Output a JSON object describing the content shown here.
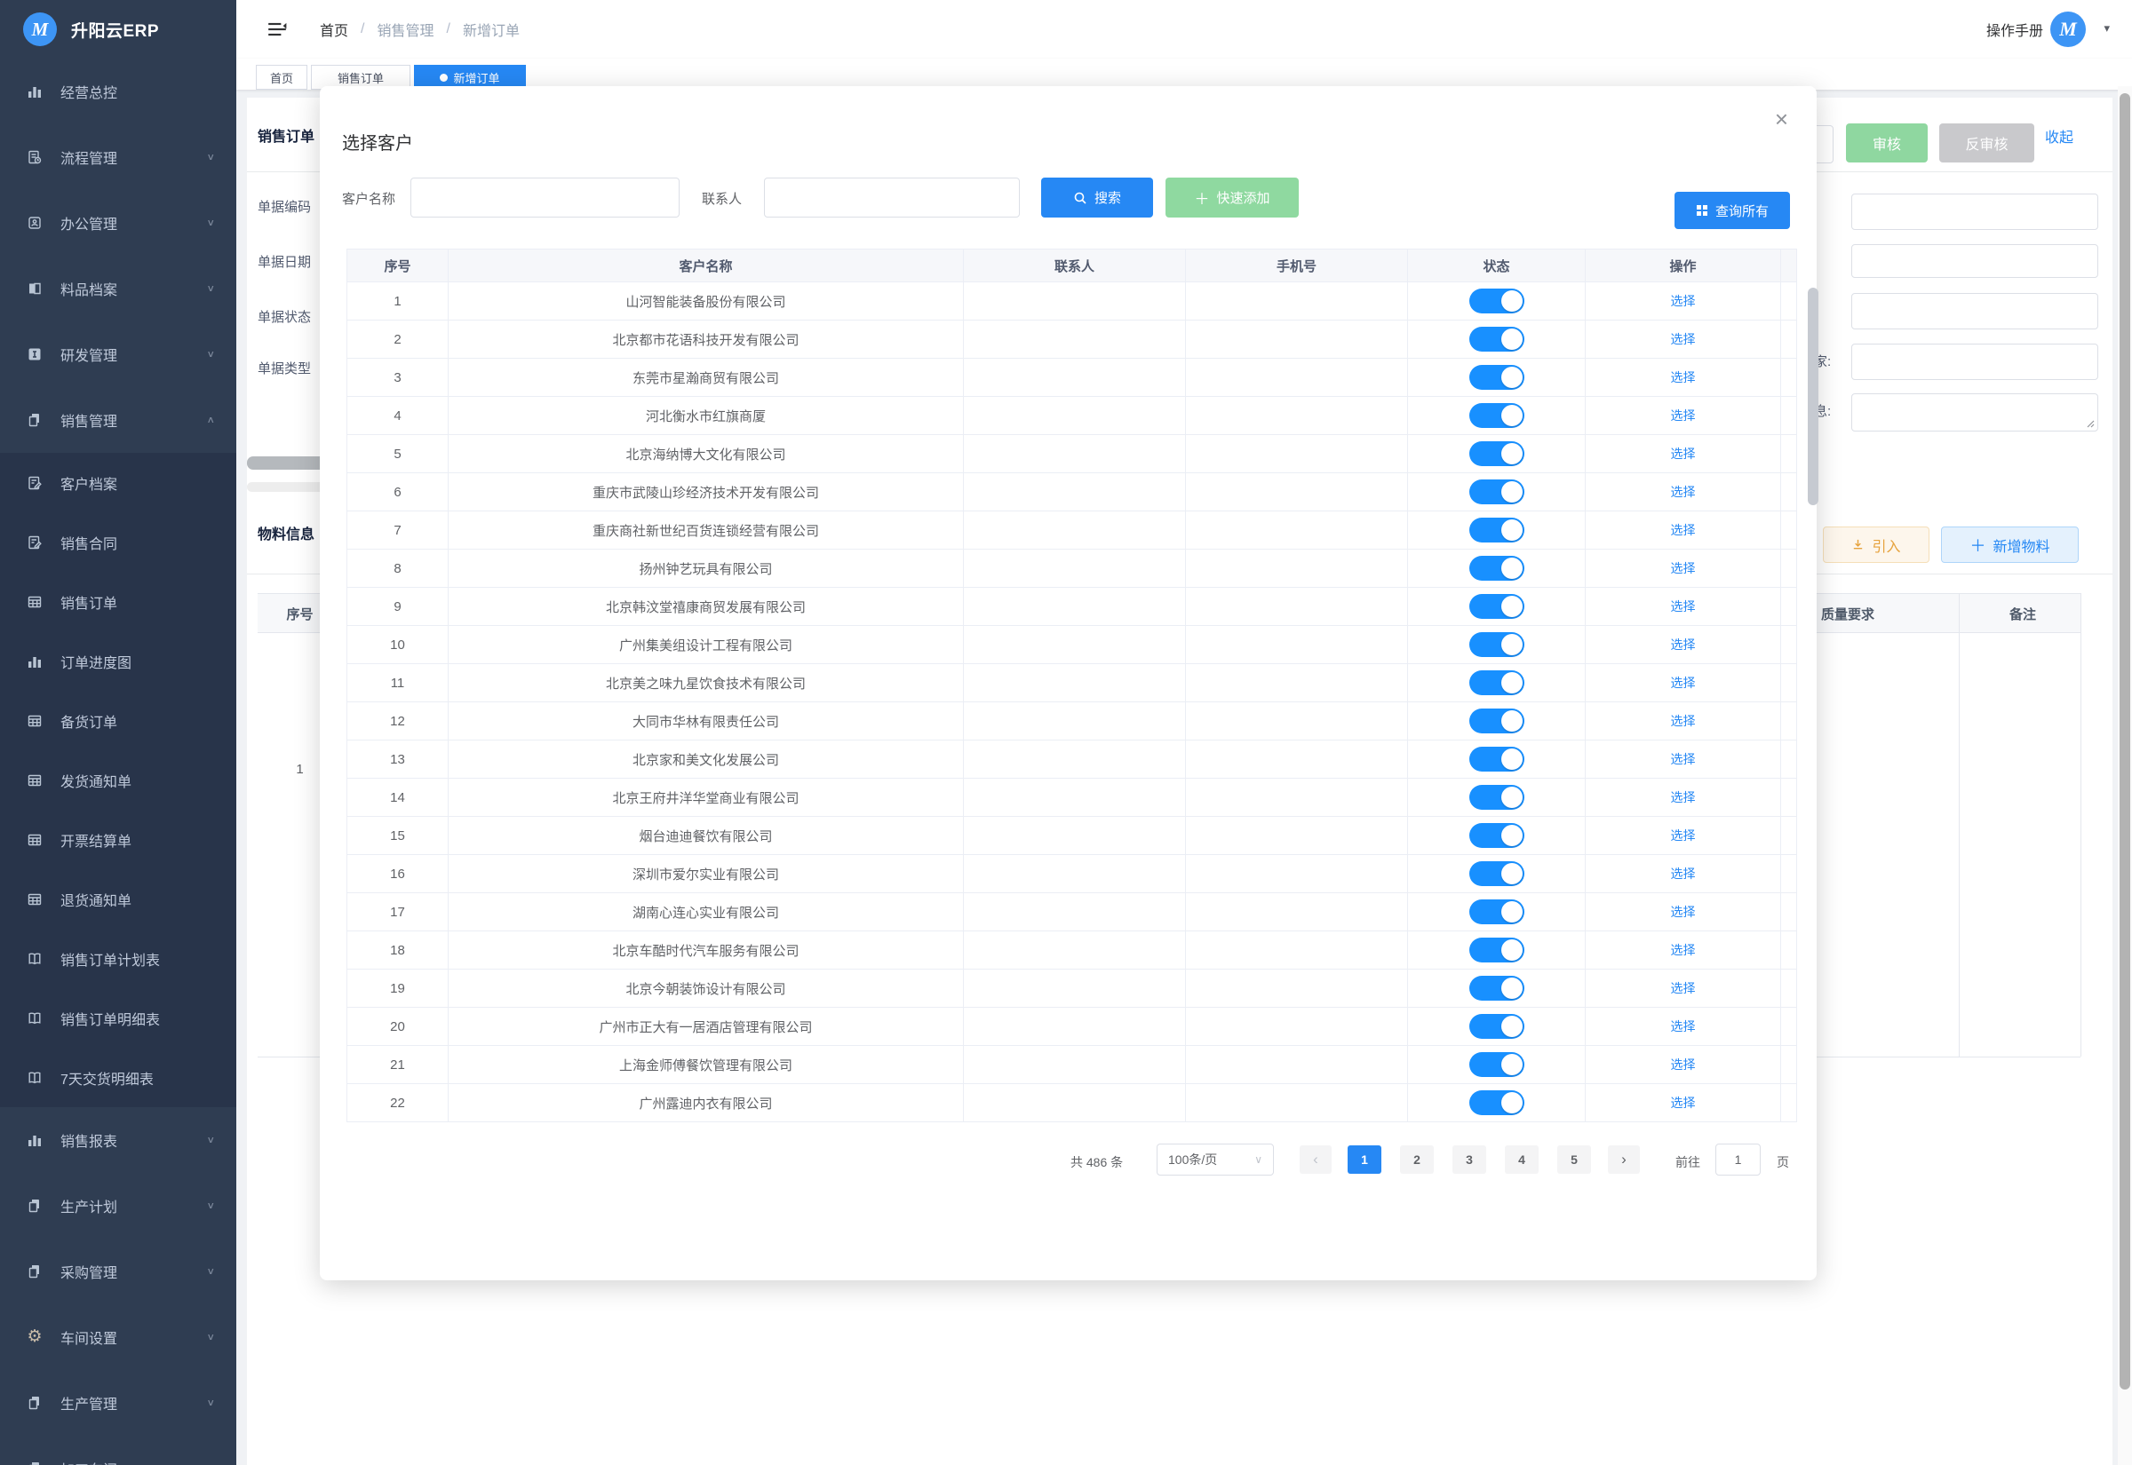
{
  "app": {
    "title": "升阳云ERP",
    "logo_letter": "M"
  },
  "topbar": {
    "breadcrumb": [
      "首页",
      "销售管理",
      "新增订单"
    ],
    "manual": "操作手册",
    "avatar_letter": "M"
  },
  "tabs": [
    {
      "label": "首页",
      "active": false
    },
    {
      "label": "销售订单",
      "active": false
    },
    {
      "label": "新增订单",
      "active": true
    }
  ],
  "sidebar": {
    "items": [
      {
        "label": "经营总控",
        "icon": "chart",
        "chevron": "",
        "sub": false
      },
      {
        "label": "流程管理",
        "icon": "flow",
        "chevron": "down",
        "sub": false
      },
      {
        "label": "办公管理",
        "icon": "office",
        "chevron": "down",
        "sub": false
      },
      {
        "label": "料品档案",
        "icon": "book",
        "chevron": "down",
        "sub": false
      },
      {
        "label": "研发管理",
        "icon": "dev",
        "chevron": "down",
        "sub": false
      },
      {
        "label": "销售管理",
        "icon": "copy",
        "chevron": "up",
        "sub": false
      },
      {
        "label": "客户档案",
        "icon": "edit",
        "chevron": "",
        "sub": true
      },
      {
        "label": "销售合同",
        "icon": "edit",
        "chevron": "",
        "sub": true
      },
      {
        "label": "销售订单",
        "icon": "table",
        "chevron": "",
        "sub": true
      },
      {
        "label": "订单进度图",
        "icon": "chart",
        "chevron": "",
        "sub": true
      },
      {
        "label": "备货订单",
        "icon": "table",
        "chevron": "",
        "sub": true
      },
      {
        "label": "发货通知单",
        "icon": "table",
        "chevron": "",
        "sub": true
      },
      {
        "label": "开票结算单",
        "icon": "table",
        "chevron": "",
        "sub": true
      },
      {
        "label": "退货通知单",
        "icon": "table",
        "chevron": "",
        "sub": true
      },
      {
        "label": "销售订单计划表",
        "icon": "openbook",
        "chevron": "",
        "sub": true
      },
      {
        "label": "销售订单明细表",
        "icon": "openbook",
        "chevron": "",
        "sub": true
      },
      {
        "label": "7天交货明细表",
        "icon": "openbook",
        "chevron": "",
        "sub": true
      },
      {
        "label": "销售报表",
        "icon": "chart",
        "chevron": "down",
        "sub": false
      },
      {
        "label": "生产计划",
        "icon": "copy",
        "chevron": "down",
        "sub": false
      },
      {
        "label": "采购管理",
        "icon": "copy",
        "chevron": "down",
        "sub": false
      },
      {
        "label": "车间设置",
        "icon": "gear",
        "chevron": "down",
        "sub": false
      },
      {
        "label": "生产管理",
        "icon": "copy",
        "chevron": "down",
        "sub": false
      },
      {
        "label": "加工车间",
        "icon": "copy",
        "chevron": "down",
        "sub": false
      }
    ]
  },
  "background": {
    "panel_title": "销售订单",
    "form_labels": [
      "单据编码",
      "单据日期",
      "单据状态",
      "单据类型"
    ],
    "audit": "审核",
    "unaudit": "反审核",
    "collapse": "收起",
    "partial_labels": {
      "factory": "家:",
      "info": "息:"
    },
    "materials": {
      "title": "物料信息",
      "import_btn": "引入",
      "add_btn": "新增物料",
      "seq_header": "序号",
      "quality_header": "质量要求",
      "note_header": "备注",
      "seq_value": "1"
    }
  },
  "modal": {
    "title": "选择客户",
    "filters": {
      "name_label": "客户名称",
      "contact_label": "联系人",
      "search": "搜索",
      "quick_add": "快速添加",
      "query_all": "查询所有"
    },
    "table": {
      "headers": [
        "序号",
        "客户名称",
        "联系人",
        "手机号",
        "状态",
        "操作"
      ],
      "action_label": "选择",
      "rows": [
        {
          "seq": "1",
          "name": "山河智能装备股份有限公司",
          "contact": "",
          "phone": "",
          "status": true
        },
        {
          "seq": "2",
          "name": "北京都市花语科技开发有限公司",
          "contact": "",
          "phone": "",
          "status": true
        },
        {
          "seq": "3",
          "name": "东莞市星瀚商贸有限公司",
          "contact": "",
          "phone": "",
          "status": true
        },
        {
          "seq": "4",
          "name": "河北衡水市红旗商厦",
          "contact": "",
          "phone": "",
          "status": true
        },
        {
          "seq": "5",
          "name": "北京海纳博大文化有限公司",
          "contact": "",
          "phone": "",
          "status": true
        },
        {
          "seq": "6",
          "name": "重庆市武陵山珍经济技术开发有限公司",
          "contact": "",
          "phone": "",
          "status": true
        },
        {
          "seq": "7",
          "name": "重庆商社新世纪百货连锁经营有限公司",
          "contact": "",
          "phone": "",
          "status": true
        },
        {
          "seq": "8",
          "name": "扬州钟艺玩具有限公司",
          "contact": "",
          "phone": "",
          "status": true
        },
        {
          "seq": "9",
          "name": "北京韩汶堂禧康商贸发展有限公司",
          "contact": "",
          "phone": "",
          "status": true
        },
        {
          "seq": "10",
          "name": "广州集美组设计工程有限公司",
          "contact": "",
          "phone": "",
          "status": true
        },
        {
          "seq": "11",
          "name": "北京美之味九星饮食技术有限公司",
          "contact": "",
          "phone": "",
          "status": true
        },
        {
          "seq": "12",
          "name": "大同市华林有限责任公司",
          "contact": "",
          "phone": "",
          "status": true
        },
        {
          "seq": "13",
          "name": "北京家和美文化发展公司",
          "contact": "",
          "phone": "",
          "status": true
        },
        {
          "seq": "14",
          "name": "北京王府井洋华堂商业有限公司",
          "contact": "",
          "phone": "",
          "status": true
        },
        {
          "seq": "15",
          "name": "烟台迪迪餐饮有限公司",
          "contact": "",
          "phone": "",
          "status": true
        },
        {
          "seq": "16",
          "name": "深圳市爱尔实业有限公司",
          "contact": "",
          "phone": "",
          "status": true
        },
        {
          "seq": "17",
          "name": "湖南心连心实业有限公司",
          "contact": "",
          "phone": "",
          "status": true
        },
        {
          "seq": "18",
          "name": "北京车酷时代汽车服务有限公司",
          "contact": "",
          "phone": "",
          "status": true
        },
        {
          "seq": "19",
          "name": "北京今朝装饰设计有限公司",
          "contact": "",
          "phone": "",
          "status": true
        },
        {
          "seq": "20",
          "name": "广州市正大有一居酒店管理有限公司",
          "contact": "",
          "phone": "",
          "status": true
        },
        {
          "seq": "21",
          "name": "上海金师傅餐饮管理有限公司",
          "contact": "",
          "phone": "",
          "status": true
        },
        {
          "seq": "22",
          "name": "广州露迪内衣有限公司",
          "contact": "",
          "phone": "",
          "status": true
        }
      ]
    },
    "pagination": {
      "total": "共 486 条",
      "page_size": "100条/页",
      "pages": [
        "1",
        "2",
        "3",
        "4",
        "5"
      ],
      "active_page": "1",
      "goto": "前往",
      "goto_value": "1",
      "unit": "页"
    }
  },
  "colors": {
    "accent_blue": "#2688f4",
    "toggle_blue": "#1890ff",
    "green": "#8fd9a0",
    "sidebar_bg": "#2f3d52",
    "sidebar_sub_bg": "#28344a"
  }
}
